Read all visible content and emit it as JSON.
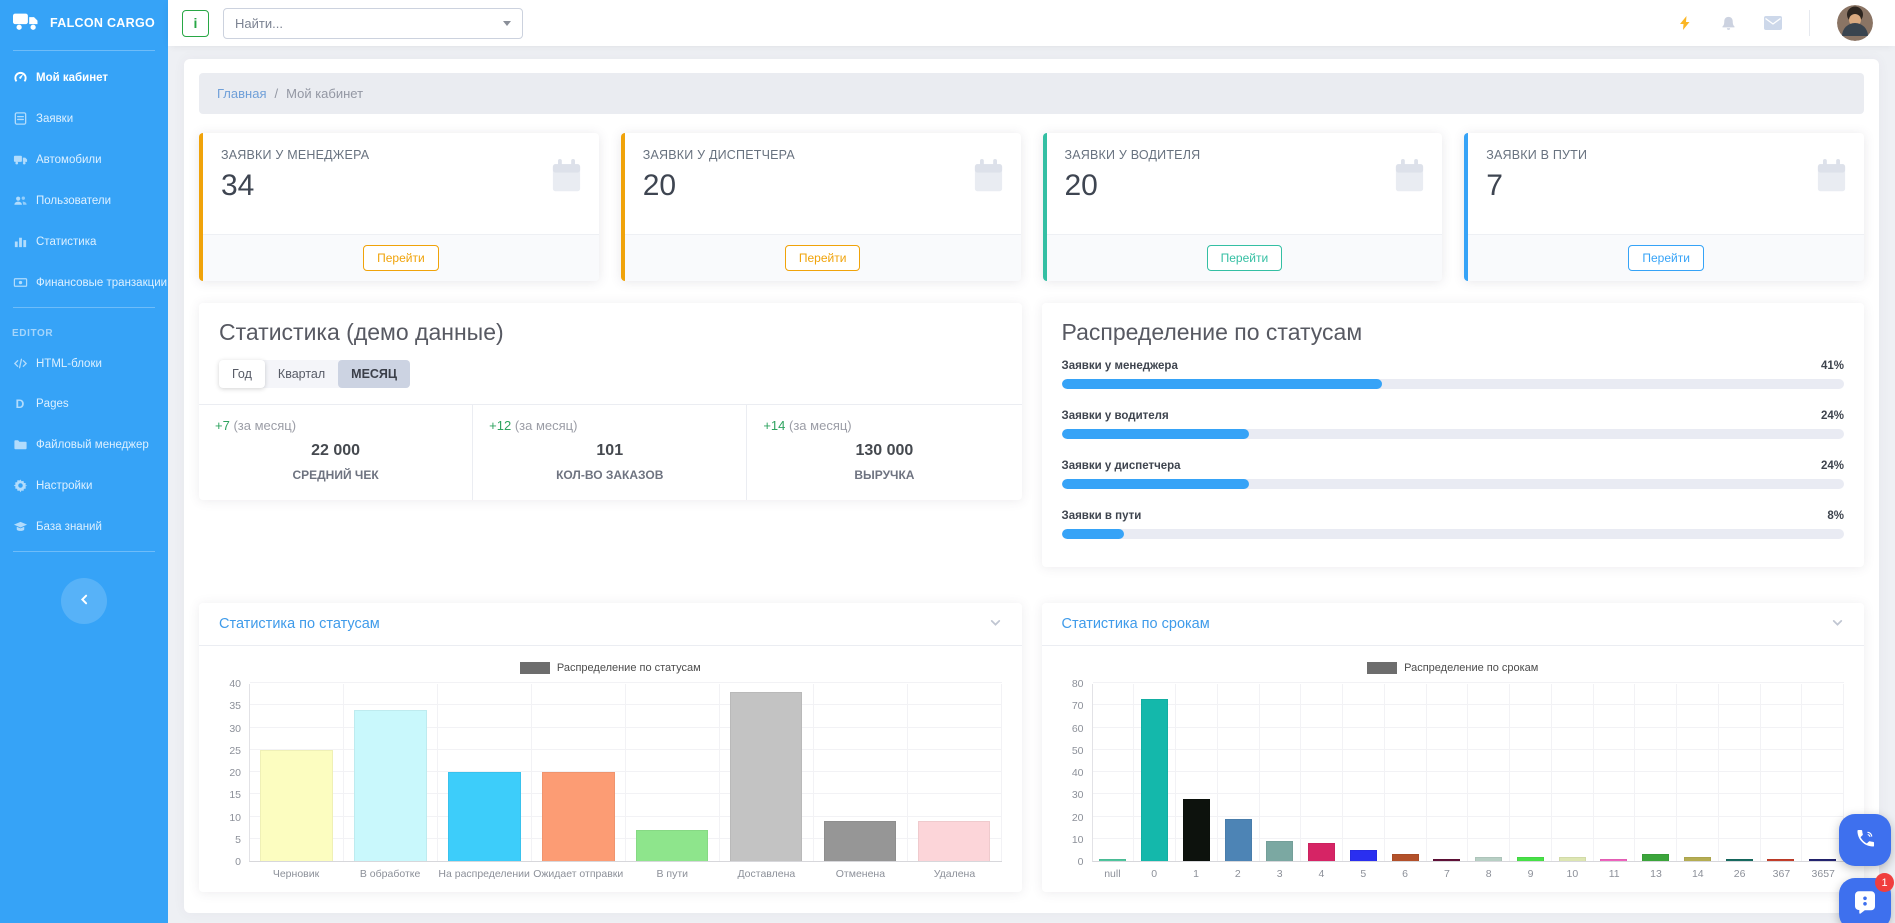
{
  "brand": {
    "name": "FALCON CARGO",
    "icon": "truck-icon"
  },
  "sidebar": {
    "items": [
      {
        "label": "Мой кабинет",
        "icon": "dashboard-icon",
        "active": true
      },
      {
        "label": "Заявки",
        "icon": "list-icon"
      },
      {
        "label": "Автомобили",
        "icon": "truck-icon"
      },
      {
        "label": "Пользователи",
        "icon": "users-icon"
      },
      {
        "label": "Статистика",
        "icon": "chart-icon"
      },
      {
        "label": "Финансовые транзакции",
        "icon": "money-icon"
      }
    ],
    "section_label": "EDITOR",
    "editor_items": [
      {
        "label": "HTML-блоки",
        "icon": "code-icon"
      },
      {
        "label": "Pages",
        "icon": "pages-icon",
        "icon_glyph": "D"
      },
      {
        "label": "Файловый менеджер",
        "icon": "folder-icon"
      },
      {
        "label": "Настройки",
        "icon": "gear-icon"
      },
      {
        "label": "База знаний",
        "icon": "education-icon"
      }
    ],
    "collapse_icon": "chevron-left-icon"
  },
  "topbar": {
    "info_button": "i",
    "search_placeholder": "Найти...",
    "icons": [
      "bolt-icon",
      "bell-icon",
      "mail-icon"
    ],
    "bolt_color": "#fbb624"
  },
  "breadcrumb": {
    "home": "Главная",
    "separator": "/",
    "current": "Мой кабинет"
  },
  "stat_cards": [
    {
      "title": "ЗАЯВКИ У МЕНЕДЖЕРА",
      "value": "34",
      "action": "Перейти",
      "accent": "#f0a30a",
      "icon": "calendar-icon"
    },
    {
      "title": "ЗАЯВКИ У ДИСПЕТЧЕРА",
      "value": "20",
      "action": "Перейти",
      "accent": "#f0a30a",
      "icon": "calendar-icon"
    },
    {
      "title": "ЗАЯВКИ У ВОДИТЕЛЯ",
      "value": "20",
      "action": "Перейти",
      "accent": "#34bfa3",
      "icon": "calendar-icon"
    },
    {
      "title": "ЗАЯВКИ В ПУТИ",
      "value": "7",
      "action": "Перейти",
      "accent": "#36a3f7",
      "icon": "calendar-icon"
    }
  ],
  "stats_panel": {
    "title": "Статистика (демо данные)",
    "tabs": [
      {
        "label": "Год",
        "raised": true
      },
      {
        "label": "Квартал"
      },
      {
        "label": "МЕСЯЦ",
        "active": true
      }
    ],
    "metrics": [
      {
        "delta": "+7",
        "period": "(за месяц)",
        "value": "22 000",
        "label": "СРЕДНИЙ ЧЕК"
      },
      {
        "delta": "+12",
        "period": "(за месяц)",
        "value": "101",
        "label": "КОЛ-ВО ЗАКАЗОВ"
      },
      {
        "delta": "+14",
        "period": "(за месяц)",
        "value": "130 000",
        "label": "ВЫРУЧКА"
      }
    ]
  },
  "distribution_panel": {
    "title": "Распределение по статусам",
    "bar_color": "#36a3f7",
    "bars": [
      {
        "label": "Заявки у менеджера",
        "percent_label": "41%",
        "value": 41
      },
      {
        "label": "Заявки у водителя",
        "percent_label": "24%",
        "value": 24
      },
      {
        "label": "Заявки у диспетчера",
        "percent_label": "24%",
        "value": 24
      },
      {
        "label": "Заявки в пути",
        "percent_label": "8%",
        "value": 8
      }
    ]
  },
  "chart_data": [
    {
      "type": "bar",
      "panel_title": "Статистика по статусам",
      "legend": "Распределение по статусам",
      "legend_position": "top",
      "grid": true,
      "categories": [
        "Черновик",
        "В обработке",
        "На распределении",
        "Ожидает отправки",
        "В пути",
        "Доставлена",
        "Отменена",
        "Удалена"
      ],
      "values": [
        25,
        34,
        20,
        20,
        7,
        38,
        9,
        9
      ],
      "colors": [
        "#fcfdc0",
        "#c9f8fc",
        "#3dcdfa",
        "#fc9c74",
        "#8ee58c",
        "#c3c3c3",
        "#969696",
        "#fcd5d9"
      ],
      "ylim": [
        0,
        40
      ],
      "ytick": 5
    },
    {
      "type": "bar",
      "panel_title": "Статистика по срокам",
      "legend": "Распределение по срокам",
      "legend_position": "top",
      "grid": true,
      "categories": [
        "null",
        "0",
        "1",
        "2",
        "3",
        "4",
        "5",
        "6",
        "7",
        "8",
        "9",
        "10",
        "11",
        "13",
        "14",
        "26",
        "367",
        "3657"
      ],
      "values": [
        1,
        73,
        28,
        19,
        9,
        8,
        5,
        3,
        1,
        2,
        2,
        2,
        1,
        3,
        2,
        1,
        1,
        1
      ],
      "colors": [
        "#4fc69e",
        "#14b8ab",
        "#0d120d",
        "#4d84b5",
        "#7ba8a2",
        "#d62465",
        "#2a2ff0",
        "#b3512a",
        "#601138",
        "#b7cfc4",
        "#47e147",
        "#dde6b2",
        "#ef63be",
        "#3ba53b",
        "#b5ad52",
        "#176b60",
        "#c43e2a",
        "#242470"
      ],
      "ylim": [
        0,
        80
      ],
      "ytick": 10
    }
  ],
  "floating": {
    "viber_icon": "viber-phone-icon",
    "chat_icon": "chat-bubble-icon",
    "badge": "1"
  }
}
